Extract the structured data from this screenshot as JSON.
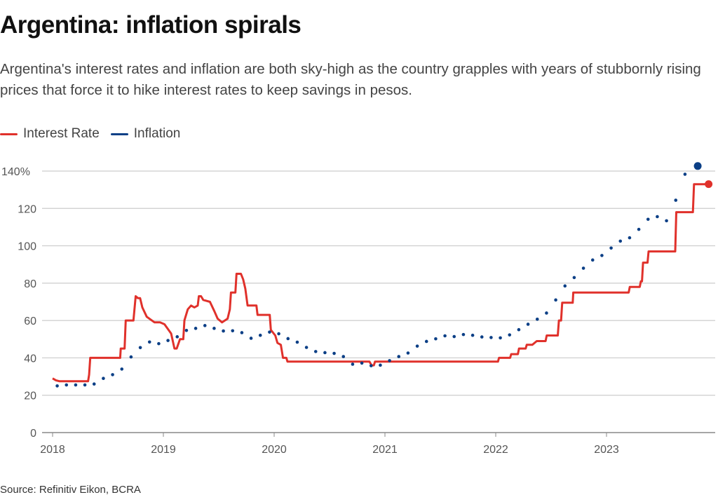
{
  "chart_data": {
    "type": "line",
    "title": "Argentina: inflation spirals",
    "subtitle": "Argentina's interest rates and inflation are both sky-high as the country grapples with years of stubbornly rising prices that force it to hike interest rates to keep savings in pesos.",
    "source": "Source: Refinitiv Eikon, BCRA",
    "xlabel": "",
    "ylabel": "",
    "xlim": [
      2018,
      2024
    ],
    "ylim": [
      0,
      140
    ],
    "x_ticks": [
      "2018",
      "2019",
      "2020",
      "2021",
      "2022",
      "2023"
    ],
    "y_ticks": [
      "0",
      "20",
      "40",
      "60",
      "80",
      "100",
      "120",
      "140%"
    ],
    "grid": true,
    "legend_position": "top-left",
    "series": [
      {
        "name": "Interest Rate",
        "color": "#e0312b",
        "style": "step-line",
        "points": [
          [
            2018.0,
            29
          ],
          [
            2018.03,
            28
          ],
          [
            2018.06,
            27.5
          ],
          [
            2018.32,
            27.5
          ],
          [
            2018.33,
            31
          ],
          [
            2018.34,
            40
          ],
          [
            2018.61,
            40
          ],
          [
            2018.615,
            45
          ],
          [
            2018.65,
            45
          ],
          [
            2018.66,
            60
          ],
          [
            2018.73,
            60
          ],
          [
            2018.75,
            73
          ],
          [
            2018.77,
            72
          ],
          [
            2018.79,
            72
          ],
          [
            2018.81,
            67
          ],
          [
            2018.85,
            62
          ],
          [
            2018.92,
            59
          ],
          [
            2018.97,
            59
          ],
          [
            2019.01,
            58
          ],
          [
            2019.07,
            53
          ],
          [
            2019.1,
            45
          ],
          [
            2019.12,
            45
          ],
          [
            2019.15,
            50
          ],
          [
            2019.18,
            50
          ],
          [
            2019.19,
            60
          ],
          [
            2019.22,
            66
          ],
          [
            2019.25,
            68
          ],
          [
            2019.28,
            67
          ],
          [
            2019.31,
            68
          ],
          [
            2019.32,
            73
          ],
          [
            2019.34,
            73
          ],
          [
            2019.36,
            71
          ],
          [
            2019.42,
            70
          ],
          [
            2019.46,
            65
          ],
          [
            2019.49,
            61
          ],
          [
            2019.53,
            59
          ],
          [
            2019.58,
            61
          ],
          [
            2019.6,
            66
          ],
          [
            2019.61,
            75
          ],
          [
            2019.65,
            75
          ],
          [
            2019.66,
            85
          ],
          [
            2019.7,
            85
          ],
          [
            2019.72,
            82
          ],
          [
            2019.74,
            77
          ],
          [
            2019.76,
            68
          ],
          [
            2019.84,
            68
          ],
          [
            2019.85,
            63
          ],
          [
            2019.96,
            63
          ],
          [
            2019.97,
            55
          ],
          [
            2020.01,
            52
          ],
          [
            2020.03,
            48
          ],
          [
            2020.06,
            47
          ],
          [
            2020.08,
            40
          ],
          [
            2020.11,
            40
          ],
          [
            2020.12,
            38
          ],
          [
            2020.86,
            38
          ],
          [
            2020.88,
            36
          ],
          [
            2020.9,
            36
          ],
          [
            2020.91,
            38
          ],
          [
            2022.02,
            38
          ],
          [
            2022.03,
            40
          ],
          [
            2022.13,
            40
          ],
          [
            2022.14,
            42
          ],
          [
            2022.2,
            42
          ],
          [
            2022.21,
            45
          ],
          [
            2022.27,
            45
          ],
          [
            2022.28,
            47
          ],
          [
            2022.33,
            47
          ],
          [
            2022.37,
            49
          ],
          [
            2022.45,
            49
          ],
          [
            2022.46,
            52
          ],
          [
            2022.56,
            52
          ],
          [
            2022.57,
            60
          ],
          [
            2022.59,
            60
          ],
          [
            2022.6,
            69.5
          ],
          [
            2022.695,
            69.5
          ],
          [
            2022.7,
            75
          ],
          [
            2023.2,
            75
          ],
          [
            2023.21,
            78
          ],
          [
            2023.3,
            78
          ],
          [
            2023.31,
            81
          ],
          [
            2023.32,
            81
          ],
          [
            2023.33,
            91
          ],
          [
            2023.37,
            91
          ],
          [
            2023.38,
            97
          ],
          [
            2023.62,
            97
          ],
          [
            2023.63,
            118
          ],
          [
            2023.78,
            118
          ],
          [
            2023.79,
            133
          ],
          [
            2023.89,
            133
          ]
        ]
      },
      {
        "name": "Inflation",
        "color": "#0b3f86",
        "style": "dotted-monthly",
        "start": "2018-01",
        "values": [
          25,
          25.5,
          25.5,
          25.5,
          26,
          29,
          31,
          34,
          40.5,
          45.5,
          48.5,
          47.6,
          49.3,
          51.3,
          54.7,
          55.8,
          57.3,
          55.8,
          54.4,
          54.5,
          53.5,
          50.5,
          52.1,
          53.8,
          52.9,
          50.3,
          48.4,
          45.6,
          43.4,
          42.8,
          42.4,
          40.7,
          36.6,
          37.2,
          35.8,
          36.1,
          38.5,
          40.7,
          42.6,
          46.3,
          48.8,
          50.2,
          51.8,
          51.4,
          52.5,
          52.1,
          51.2,
          50.9,
          50.7,
          52.3,
          55.1,
          58,
          60.7,
          64,
          71,
          78.5,
          83,
          88,
          92.4,
          94.8,
          98.8,
          102.5,
          104.3,
          108.8,
          114.2,
          115.6,
          113.4,
          124.4,
          138.3,
          142.7
        ]
      }
    ]
  }
}
